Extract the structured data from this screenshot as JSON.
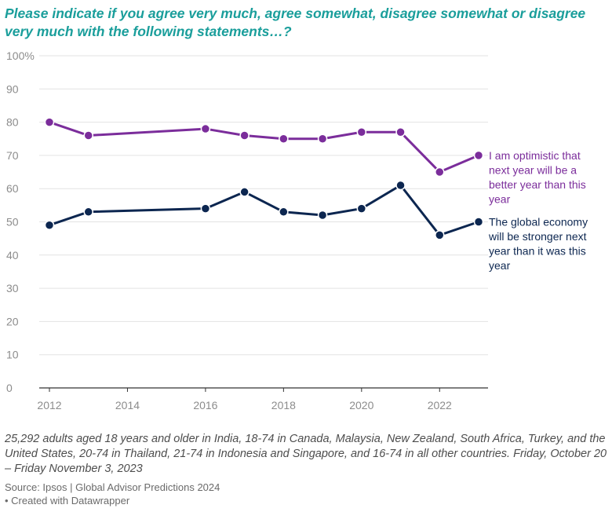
{
  "header": {
    "title": "Please indicate if you agree very much, agree somewhat, disagree somewhat or disagree very much with the following statements…?"
  },
  "chart_data": {
    "type": "line",
    "x_ticks": [
      "2012",
      "2014",
      "2016",
      "2018",
      "2020",
      "2022"
    ],
    "y_ticks": [
      "0",
      "10",
      "20",
      "30",
      "40",
      "50",
      "60",
      "70",
      "80",
      "90",
      "100%"
    ],
    "xlim": [
      2012,
      2023
    ],
    "ylim": [
      0,
      100
    ],
    "grid": true,
    "series": [
      {
        "name": "I am optimistic that next year will be a better year than this year",
        "label_lines": [
          "I am optimistic that",
          "next year will be a",
          "better year than this",
          "year"
        ],
        "color": "#7b2d9b",
        "x": [
          2012,
          2013,
          2016,
          2017,
          2018,
          2019,
          2020,
          2021,
          2022,
          2023
        ],
        "values": [
          80,
          76,
          78,
          76,
          75,
          75,
          77,
          77,
          65,
          70
        ]
      },
      {
        "name": "The global economy will be stronger next year than it was this year",
        "label_lines": [
          "The global economy",
          "will be stronger next",
          "year than it was this",
          "year"
        ],
        "color": "#0c2650",
        "x": [
          2012,
          2013,
          2016,
          2017,
          2018,
          2019,
          2020,
          2021,
          2022,
          2023
        ],
        "values": [
          49,
          53,
          54,
          59,
          53,
          52,
          54,
          61,
          46,
          50
        ]
      }
    ]
  },
  "notes": {
    "text": "25,292 adults aged 18 years and older in India, 18-74 in Canada, Malaysia, New Zealand, South Africa, Turkey, and the United States, 20-74 in Thailand, 21-74 in Indonesia and Singapore, and 16-74 in all other countries. Friday, October 20 – Friday November 3, 2023"
  },
  "footer": {
    "source": "Source: Ipsos | Global Advisor Predictions 2024",
    "credit": "• Created with Datawrapper"
  }
}
